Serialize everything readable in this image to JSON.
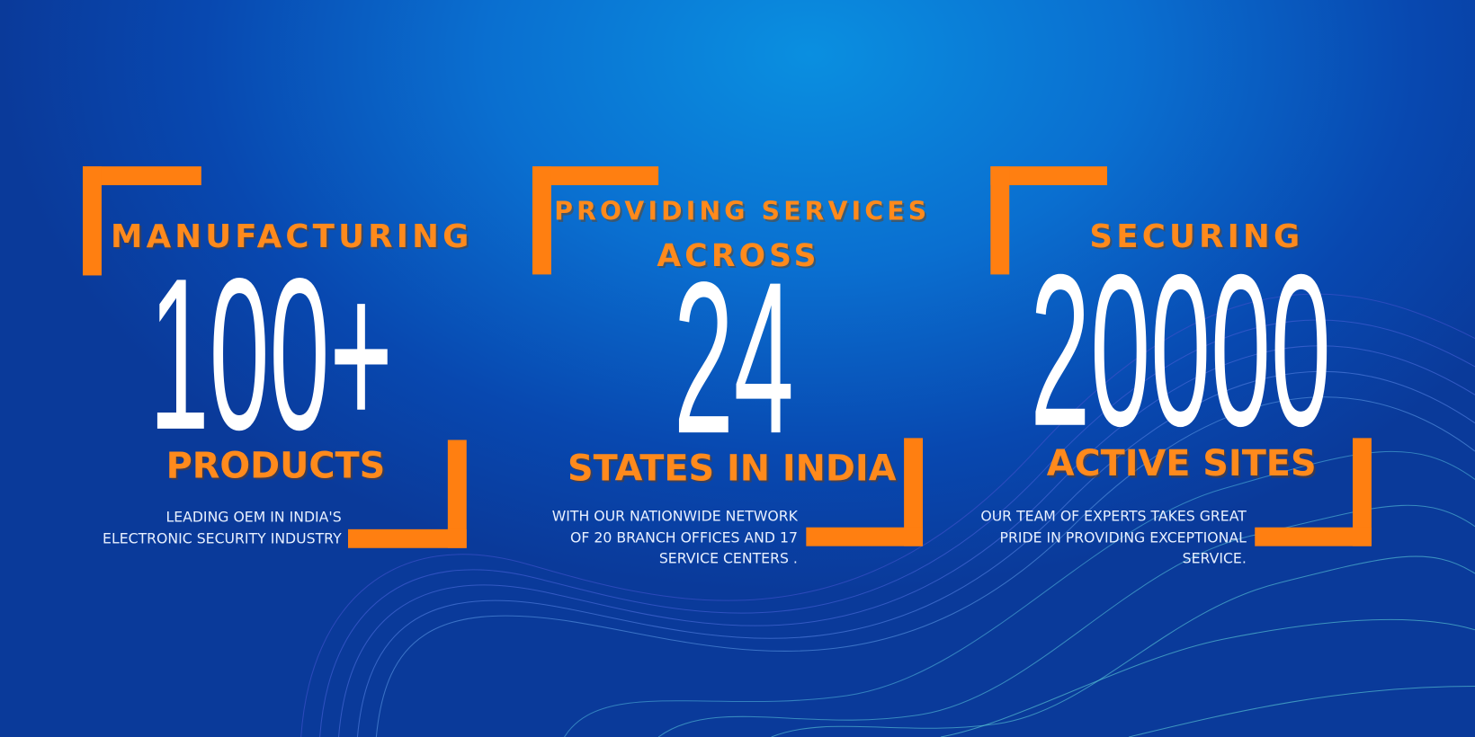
{
  "stats": [
    {
      "heading": [
        "MANUFACTURING"
      ],
      "number": "100+",
      "label": "PRODUCTS",
      "description": [
        "LEADING OEM IN INDIA'S",
        "ELECTRONIC SECURITY INDUSTRY"
      ]
    },
    {
      "heading": [
        "PROVIDING SERVICES",
        "ACROSS"
      ],
      "number": "24",
      "label": "STATES IN INDIA",
      "description": [
        "WITH OUR NATIONWIDE NETWORK",
        "OF 20 BRANCH OFFICES AND 17",
        "SERVICE CENTERS ."
      ]
    },
    {
      "heading": [
        "SECURING"
      ],
      "number": "20000",
      "label": "ACTIVE SITES",
      "description": [
        "OUR TEAM OF EXPERTS TAKES GREAT",
        "PRIDE IN PROVIDING EXCEPTIONAL",
        "SERVICE."
      ]
    }
  ]
}
